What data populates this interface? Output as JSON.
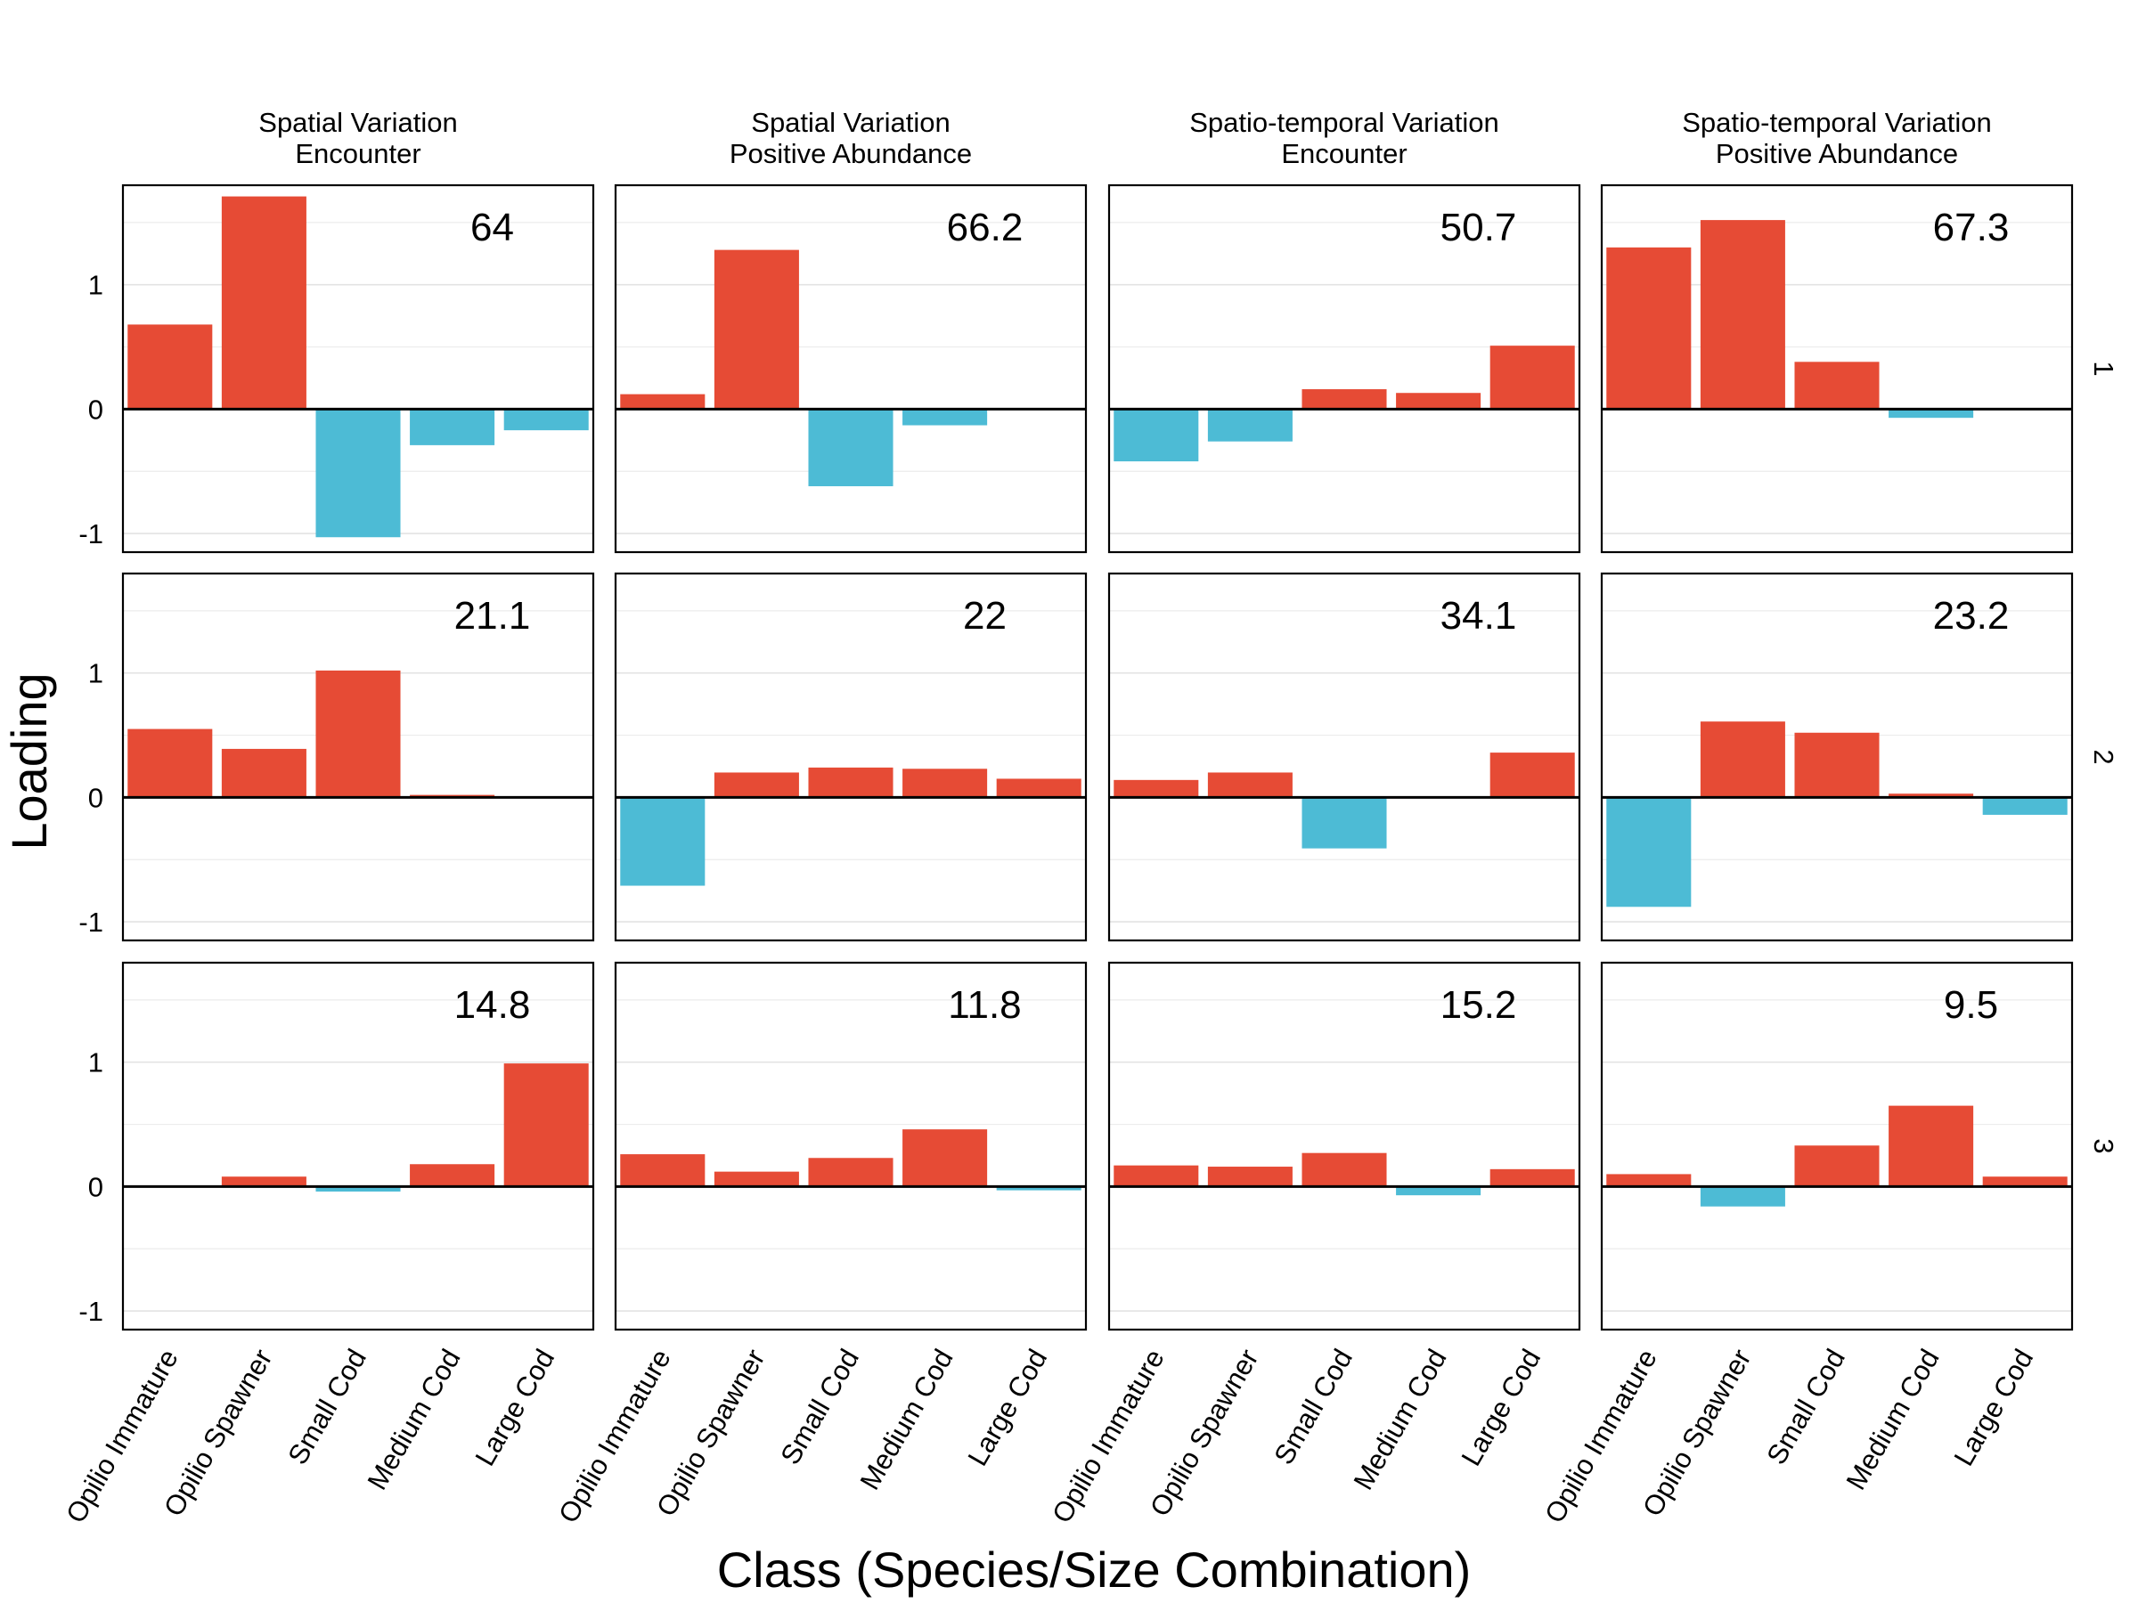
{
  "chart_data": {
    "type": "bar",
    "ylabel": "Loading",
    "xlabel": "Class (Species/Size Combination)",
    "categories": [
      "Opilio Immature",
      "Opilio Spawner",
      "Small Cod",
      "Medium Cod",
      "Large Cod"
    ],
    "column_facets": [
      [
        "Spatial Variation",
        "Encounter"
      ],
      [
        "Spatial Variation",
        "Positive Abundance"
      ],
      [
        "Spatio-temporal Variation",
        "Encounter"
      ],
      [
        "Spatio-temporal Variation",
        "Positive Abundance"
      ]
    ],
    "row_facets": [
      "1",
      "2",
      "3"
    ],
    "ylim": [
      -1.15,
      1.8
    ],
    "yticks": [
      -1,
      0,
      1
    ],
    "grid": true,
    "colors": {
      "positive": "#E64B35",
      "negative": "#4DBBD5"
    },
    "panels": [
      {
        "row": "1",
        "col": 0,
        "variance_label": "64",
        "values": [
          0.68,
          1.71,
          -1.03,
          -0.29,
          -0.17
        ]
      },
      {
        "row": "1",
        "col": 1,
        "variance_label": "66.2",
        "values": [
          0.12,
          1.28,
          -0.62,
          -0.13,
          0.0
        ]
      },
      {
        "row": "1",
        "col": 2,
        "variance_label": "50.7",
        "values": [
          -0.42,
          -0.26,
          0.16,
          0.13,
          0.51
        ]
      },
      {
        "row": "1",
        "col": 3,
        "variance_label": "67.3",
        "values": [
          1.3,
          1.52,
          0.38,
          -0.07,
          0.0
        ]
      },
      {
        "row": "2",
        "col": 0,
        "variance_label": "21.1",
        "values": [
          0.55,
          0.39,
          1.02,
          0.02,
          0.0
        ]
      },
      {
        "row": "2",
        "col": 1,
        "variance_label": "22",
        "values": [
          -0.71,
          0.2,
          0.24,
          0.23,
          0.15
        ]
      },
      {
        "row": "2",
        "col": 2,
        "variance_label": "34.1",
        "values": [
          0.14,
          0.2,
          -0.41,
          0.0,
          0.36
        ]
      },
      {
        "row": "2",
        "col": 3,
        "variance_label": "23.2",
        "values": [
          -0.88,
          0.61,
          0.52,
          0.03,
          -0.14
        ]
      },
      {
        "row": "3",
        "col": 0,
        "variance_label": "14.8",
        "values": [
          0.0,
          0.08,
          -0.04,
          0.18,
          0.99
        ]
      },
      {
        "row": "3",
        "col": 1,
        "variance_label": "11.8",
        "values": [
          0.26,
          0.12,
          0.23,
          0.46,
          -0.03
        ]
      },
      {
        "row": "3",
        "col": 2,
        "variance_label": "15.2",
        "values": [
          0.17,
          0.16,
          0.27,
          -0.07,
          0.14
        ]
      },
      {
        "row": "3",
        "col": 3,
        "variance_label": "9.5",
        "values": [
          0.1,
          -0.16,
          0.33,
          0.65,
          0.08
        ]
      }
    ]
  }
}
